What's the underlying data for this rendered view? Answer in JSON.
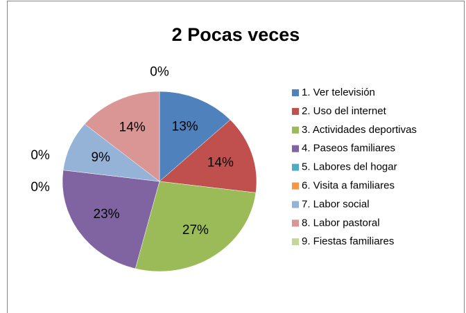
{
  "chart_data": {
    "type": "pie",
    "title": "2 Pocas veces",
    "categories": [
      "1. Ver televisión",
      "2. Uso del internet",
      "3. Actividades deportivas",
      "4. Paseos familiares",
      "5. Labores del hogar",
      "6. Visita a familiares",
      "7. Labor social",
      "8. Labor pastoral",
      "9. Fiestas familiares"
    ],
    "values": [
      13,
      14,
      27,
      23,
      0,
      0,
      9,
      14,
      0
    ],
    "value_labels": [
      "13%",
      "14%",
      "27%",
      "23%",
      "0%",
      "0%",
      "9%",
      "14%",
      "0%"
    ],
    "colors": [
      "#4f81bd",
      "#c0504d",
      "#9bbb59",
      "#8064a2",
      "#4bacc6",
      "#f79646",
      "#95b3d7",
      "#da9694",
      "#c3d69b"
    ],
    "legend": "right"
  }
}
